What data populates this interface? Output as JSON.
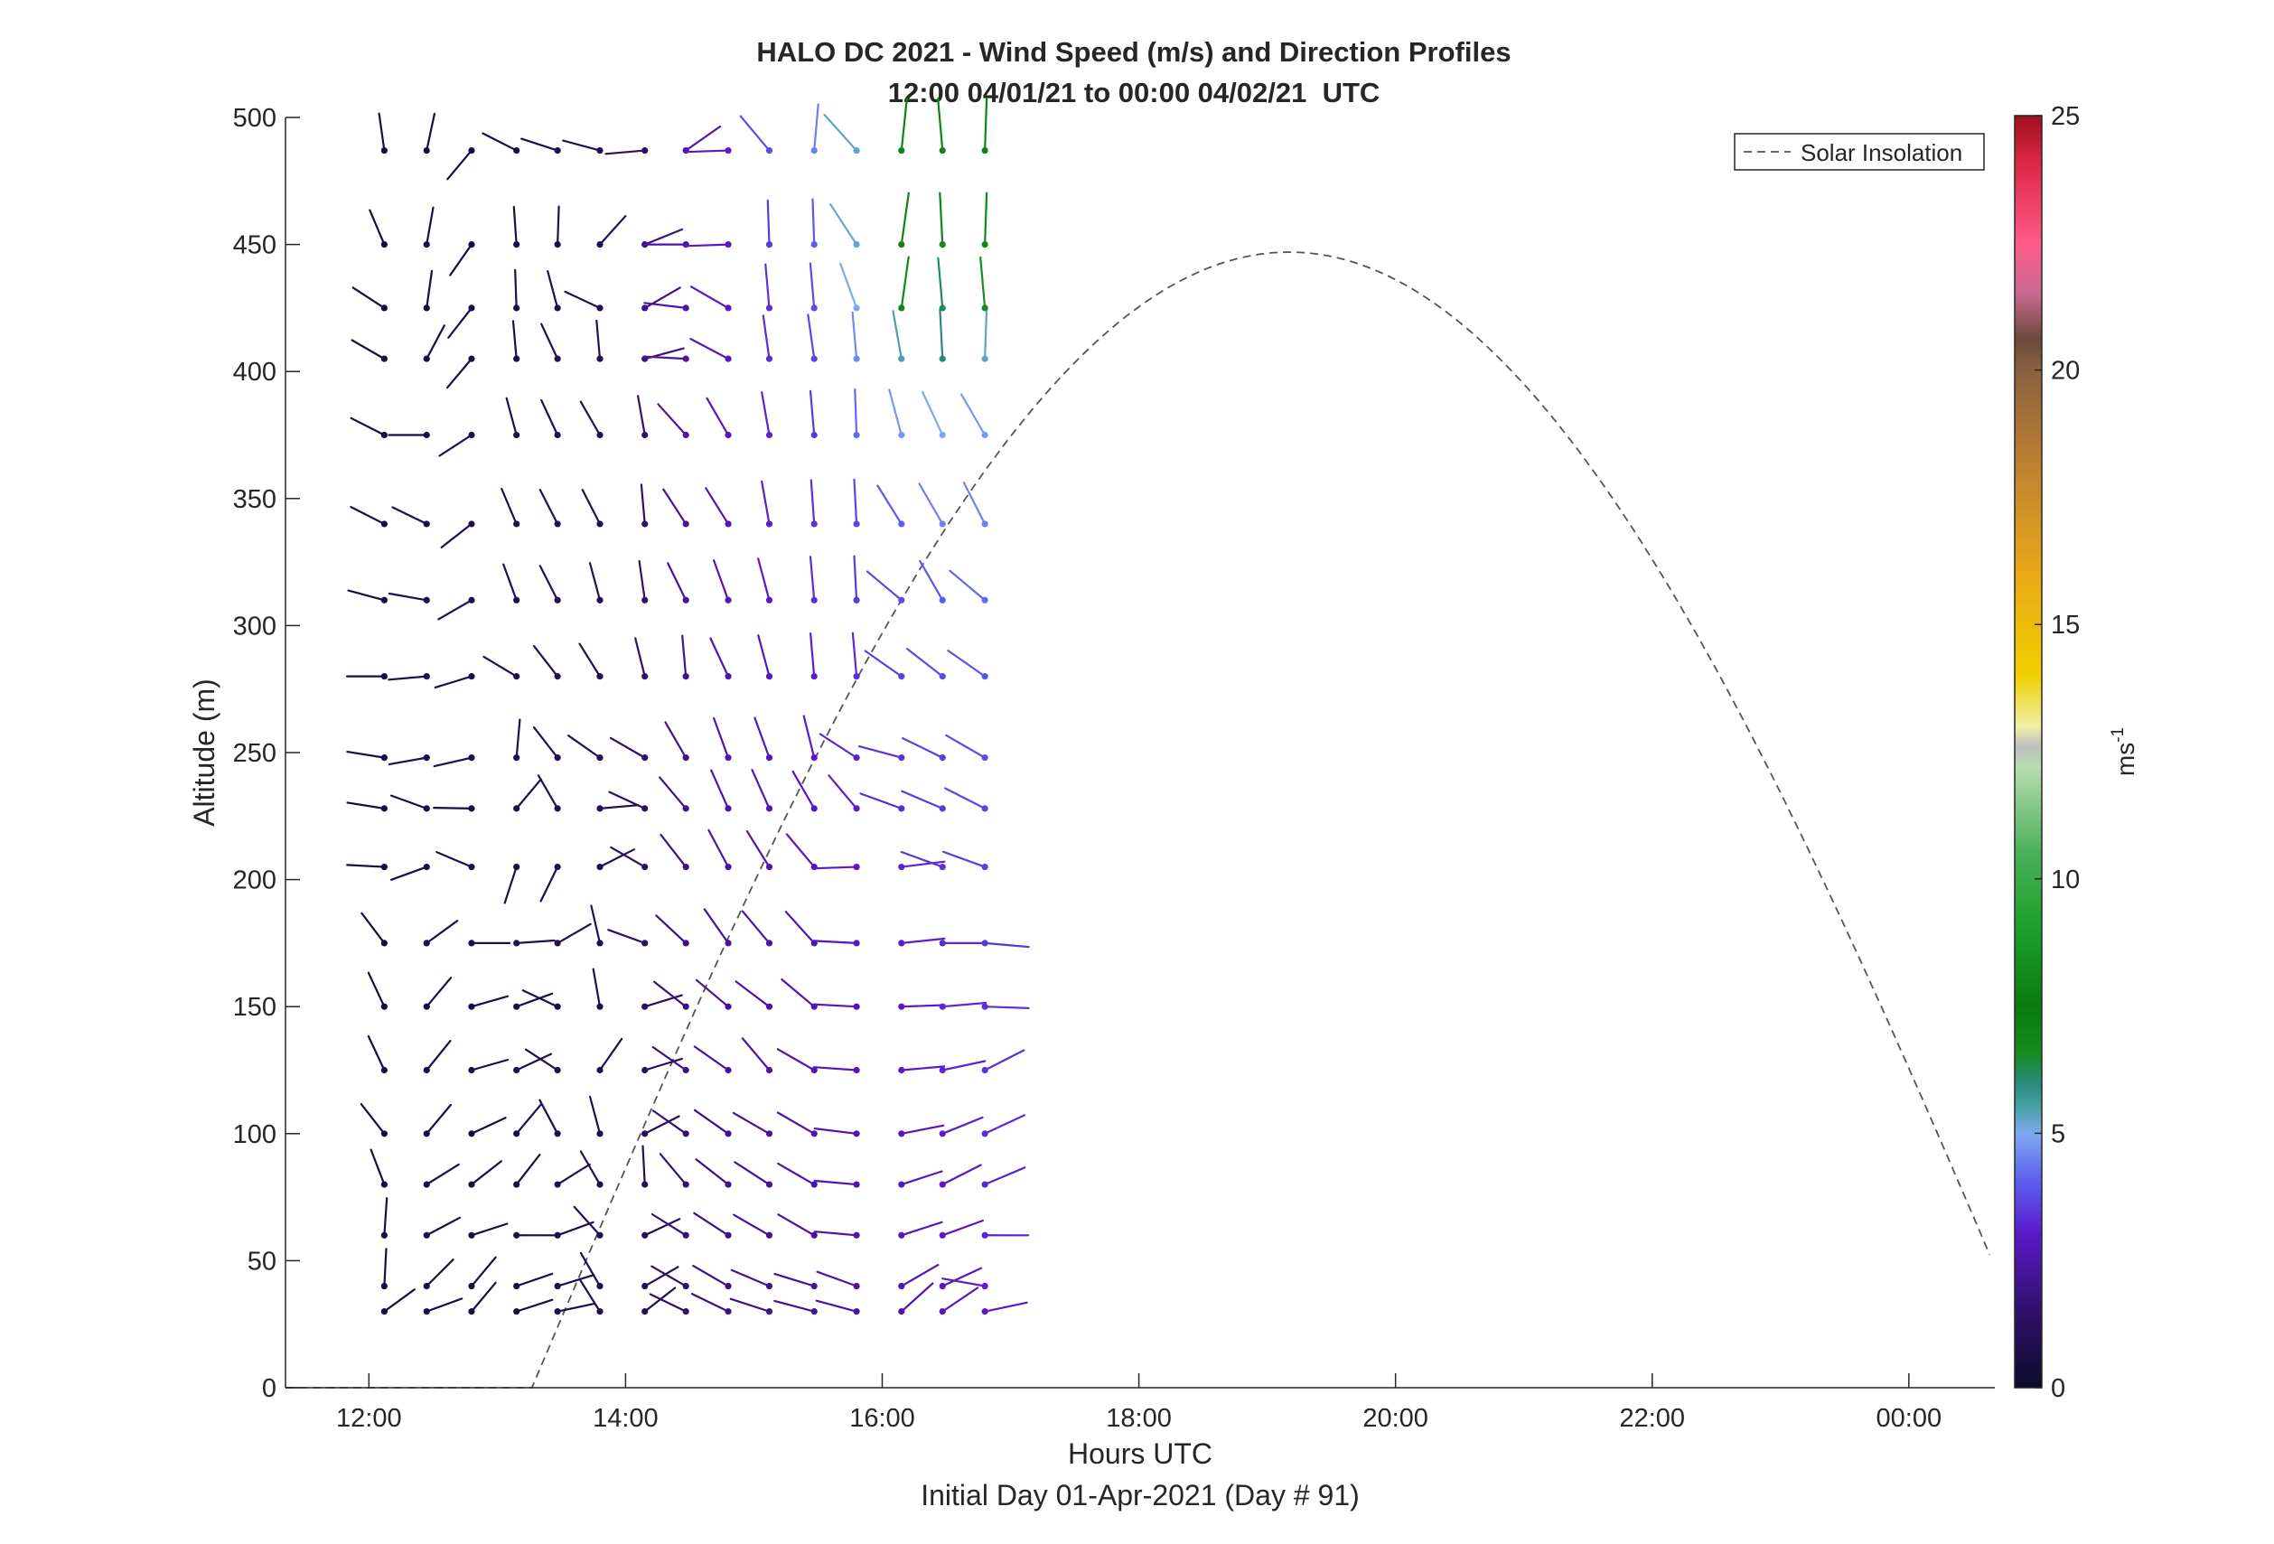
{
  "chart_data": {
    "type": "wind-profile",
    "title": "HALO DC 2021 - Wind Speed (m/s) and Direction Profiles",
    "subtitle": "12:00 04/01/21 to 00:00 04/02/21  UTC",
    "xlabel": "Hours UTC",
    "xlabel2": "Initial Day 01-Apr-2021 (Day # 91)",
    "ylabel": "Altitude (m)",
    "x_range_hours": [
      11.35,
      24.67
    ],
    "ylim": [
      0,
      500
    ],
    "x_ticks": [
      {
        "h": 12,
        "label": "12:00"
      },
      {
        "h": 14,
        "label": "14:00"
      },
      {
        "h": 16,
        "label": "16:00"
      },
      {
        "h": 18,
        "label": "18:00"
      },
      {
        "h": 20,
        "label": "20:00"
      },
      {
        "h": 22,
        "label": "22:00"
      },
      {
        "h": 24,
        "label": "00:00"
      }
    ],
    "y_ticks": [
      0,
      50,
      100,
      150,
      200,
      250,
      300,
      350,
      400,
      450,
      500
    ],
    "legend": {
      "label": "Solar Insolation",
      "placement": "top-right",
      "style": "dashed",
      "color": "#555555"
    },
    "colorbar": {
      "label": "ms",
      "label_exponent": "-1",
      "min": 0,
      "max": 25,
      "ticks": [
        0,
        5,
        10,
        15,
        20,
        25
      ],
      "colormap": [
        {
          "v": 0,
          "c": "#0b0b2a"
        },
        {
          "v": 1.5,
          "c": "#30106a"
        },
        {
          "v": 3,
          "c": "#5a18c8"
        },
        {
          "v": 4,
          "c": "#5a5aee"
        },
        {
          "v": 5,
          "c": "#7ea8f0"
        },
        {
          "v": 5.5,
          "c": "#4aa2a8"
        },
        {
          "v": 6,
          "c": "#2a8a7a"
        },
        {
          "v": 6.6,
          "c": "#168a1a"
        },
        {
          "v": 7.5,
          "c": "#0a7a10"
        },
        {
          "v": 9,
          "c": "#1aa02a"
        },
        {
          "v": 10.5,
          "c": "#4ab058"
        },
        {
          "v": 12.2,
          "c": "#b8dcb0"
        },
        {
          "v": 12.6,
          "c": "#bdbdbd"
        },
        {
          "v": 13,
          "c": "#f0f0a8"
        },
        {
          "v": 14,
          "c": "#f0d000"
        },
        {
          "v": 16,
          "c": "#eaa816"
        },
        {
          "v": 18,
          "c": "#c08430"
        },
        {
          "v": 20,
          "c": "#8a6040"
        },
        {
          "v": 20.6,
          "c": "#6a4a3a"
        },
        {
          "v": 21.5,
          "c": "#c86a90"
        },
        {
          "v": 22.5,
          "c": "#ff5a8a"
        },
        {
          "v": 24,
          "c": "#e02848"
        },
        {
          "v": 25,
          "c": "#a01020"
        }
      ]
    },
    "solar_insolation": {
      "rise_hour": 13.27,
      "peak_hour": 19.15,
      "peak_altitude_m": 447,
      "end_hour": 24.65,
      "end_altitude_m": 50
    },
    "barb_heights_m": [
      30,
      40,
      60,
      80,
      100,
      125,
      150,
      175,
      205,
      228,
      248,
      280,
      310,
      340,
      375,
      405,
      425,
      450,
      487
    ],
    "profiles": [
      {
        "t": 12.12,
        "speed": [
          0.6,
          0.5,
          0.5,
          0.5,
          0.6,
          0.6,
          0.5,
          0.6,
          0.5,
          0.5,
          0.6,
          0.5,
          0.5,
          0.6,
          0.5,
          0.5,
          0.5,
          0.5,
          0.5
        ],
        "dir": [
          54,
          3,
          4,
          339,
          322,
          335,
          335,
          323,
          273,
          279,
          279,
          270,
          285,
          297,
          297,
          300,
          303,
          337,
          352
        ]
      },
      {
        "t": 12.45,
        "speed": [
          0.6,
          0.6,
          0.6,
          0.7,
          0.6,
          0.7,
          0.7,
          0.8,
          0.7,
          0.7,
          0.8,
          0.8,
          0.8,
          0.8,
          0.7,
          0.7,
          0.6,
          0.6,
          0.6
        ],
        "dir": [
          70,
          45,
          62,
          58,
          40,
          39,
          40,
          54,
          250,
          290,
          260,
          265,
          280,
          296,
          270,
          28,
          8,
          10,
          12
        ]
      },
      {
        "t": 12.8,
        "speed": [
          0.6,
          0.6,
          0.6,
          0.7,
          0.6,
          0.7,
          0.7,
          0.8,
          0.8,
          0.7,
          0.9,
          0.8,
          0.9,
          0.9,
          0.9,
          0.7,
          0.7,
          0.6,
          0.6
        ],
        "dir": [
          40,
          40,
          72,
          52,
          65,
          74,
          74,
          90,
          293,
          271,
          257,
          253,
          240,
          232,
          237,
          220,
          218,
          215,
          220
        ]
      },
      {
        "t": 13.15,
        "speed": [
          0.7,
          0.7,
          0.8,
          0.7,
          0.8,
          0.9,
          0.8,
          0.9,
          0.8,
          0.8,
          0.9,
          0.9,
          0.9,
          0.9,
          0.9,
          0.8,
          0.8,
          0.7,
          0.7
        ],
        "dir": [
          72,
          71,
          90,
          38,
          40,
          65,
          70,
          86,
          198,
          40,
          5,
          301,
          340,
          337,
          345,
          355,
          358,
          356,
          297
        ]
      },
      {
        "t": 13.47,
        "speed": [
          0.8,
          0.8,
          0.8,
          0.8,
          0.8,
          0.8,
          0.9,
          0.9,
          0.9,
          0.9,
          1.0,
          1.0,
          1.0,
          1.0,
          1.0,
          1.0,
          0.9,
          0.8,
          0.8
        ],
        "dir": [
          78,
          73,
          70,
          58,
          332,
          303,
          295,
          60,
          206,
          330,
          322,
          322,
          333,
          333,
          335,
          335,
          345,
          2,
          288
        ]
      },
      {
        "t": 13.8,
        "speed": [
          0.9,
          0.9,
          0.9,
          0.9,
          0.9,
          0.9,
          0.9,
          1.0,
          1.0,
          1.0,
          1.0,
          1.0,
          1.0,
          1.0,
          1.0,
          1.0,
          1.0,
          0.9,
          0.9
        ],
        "dir": [
          328,
          330,
          318,
          330,
          345,
          35,
          350,
          347,
          63,
          85,
          305,
          328,
          345,
          333,
          330,
          355,
          295,
          42,
          285
        ]
      },
      {
        "t": 14.15,
        "speed": [
          1.0,
          1.0,
          1.0,
          1.0,
          1.0,
          1.2,
          1.2,
          1.2,
          1.3,
          1.3,
          1.4,
          1.4,
          1.5,
          1.5,
          1.6,
          1.8,
          2.0,
          1.8,
          1.4
        ],
        "dir": [
          52,
          60,
          65,
          357,
          63,
          73,
          73,
          290,
          300,
          295,
          300,
          346,
          352,
          355,
          350,
          75,
          60,
          68,
          265
        ]
      },
      {
        "t": 14.47,
        "speed": [
          1.5,
          1.5,
          1.6,
          1.6,
          1.7,
          1.8,
          1.8,
          1.9,
          2.0,
          2.0,
          2.1,
          2.1,
          2.2,
          2.3,
          2.4,
          2.4,
          2.5,
          2.5,
          2.5
        ],
        "dir": [
          296,
          300,
          302,
          320,
          305,
          305,
          308,
          313,
          322,
          320,
          330,
          355,
          334,
          327,
          318,
          273,
          277,
          270,
          55
        ]
      },
      {
        "t": 14.8,
        "speed": [
          1.8,
          1.9,
          2.0,
          2.0,
          2.1,
          2.2,
          2.3,
          2.3,
          2.4,
          2.5,
          2.6,
          2.6,
          2.7,
          2.7,
          2.8,
          2.8,
          2.9,
          3.0,
          3.0
        ],
        "dir": [
          296,
          300,
          303,
          308,
          305,
          305,
          310,
          325,
          332,
          336,
          340,
          335,
          340,
          328,
          330,
          298,
          300,
          268,
          268
        ]
      },
      {
        "t": 15.12,
        "speed": [
          2.0,
          2.1,
          2.1,
          2.2,
          2.3,
          2.4,
          2.5,
          2.5,
          2.6,
          2.7,
          2.8,
          2.8,
          3.0,
          3.1,
          3.2,
          3.3,
          3.4,
          3.5,
          3.8
        ],
        "dir": [
          288,
          293,
          300,
          303,
          300,
          320,
          307,
          320,
          328,
          336,
          340,
          345,
          345,
          350,
          350,
          352,
          355,
          358,
          320
        ]
      },
      {
        "t": 15.47,
        "speed": [
          2.2,
          2.3,
          2.4,
          2.5,
          2.6,
          2.6,
          2.7,
          2.7,
          2.8,
          2.9,
          3.0,
          3.1,
          3.3,
          3.4,
          3.5,
          3.7,
          3.8,
          4.0,
          4.5
        ],
        "dir": [
          285,
          287,
          300,
          300,
          300,
          300,
          310,
          318,
          320,
          330,
          346,
          355,
          355,
          356,
          355,
          352,
          355,
          358,
          5
        ]
      },
      {
        "t": 15.8,
        "speed": [
          2.4,
          2.5,
          2.6,
          2.6,
          2.7,
          2.8,
          2.8,
          2.9,
          3.0,
          3.1,
          3.2,
          3.3,
          3.5,
          3.7,
          4.2,
          4.6,
          5.0,
          5.2,
          5.3
        ],
        "dir": [
          285,
          290,
          275,
          275,
          277,
          274,
          273,
          273,
          268,
          320,
          303,
          355,
          357,
          357,
          358,
          355,
          340,
          327,
          318
        ]
      },
      {
        "t": 16.15,
        "speed": [
          2.6,
          2.7,
          2.8,
          2.8,
          2.9,
          3.0,
          3.0,
          3.1,
          3.2,
          3.3,
          3.4,
          3.6,
          3.8,
          4.0,
          4.8,
          5.5,
          6.8,
          7.0,
          7.0
        ],
        "dir": [
          48,
          60,
          72,
          72,
          79,
          85,
          88,
          84,
          83,
          290,
          285,
          305,
          310,
          328,
          345,
          350,
          8,
          8,
          6
        ]
      },
      {
        "t": 16.47,
        "speed": [
          2.8,
          2.9,
          3.0,
          3.0,
          3.1,
          3.2,
          3.2,
          3.3,
          3.4,
          3.5,
          3.6,
          3.8,
          4.0,
          4.5,
          5.0,
          6.0,
          6.2,
          6.8,
          7.0
        ],
        "dir": [
          56,
          65,
          70,
          63,
          68,
          78,
          85,
          90,
          290,
          293,
          296,
          308,
          330,
          330,
          335,
          357,
          355,
          357,
          355
        ]
      },
      {
        "t": 16.8,
        "speed": [
          3.0,
          3.1,
          3.2,
          3.2,
          3.3,
          3.4,
          3.4,
          3.5,
          3.6,
          3.7,
          3.8,
          3.9,
          4.2,
          4.5,
          4.8,
          5.3,
          6.5,
          6.8,
          7.0
        ],
        "dir": [
          78,
          280,
          90,
          67,
          65,
          63,
          92,
          95,
          290,
          297,
          300,
          305,
          310,
          333,
          330,
          2,
          355,
          2,
          2
        ]
      }
    ]
  }
}
